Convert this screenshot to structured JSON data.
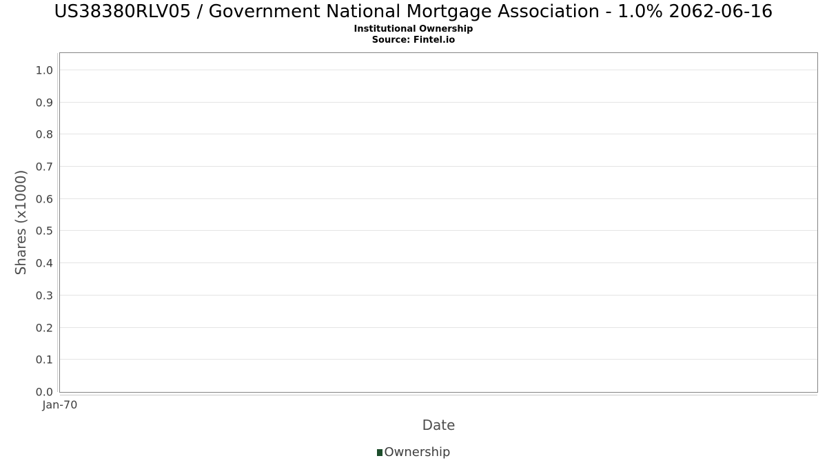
{
  "header": {
    "title": "US38380RLV05 / Government National Mortgage Association - 1.0% 2062-06-16",
    "subtitle": "Institutional Ownership",
    "source": "Source: Fintel.io"
  },
  "chart_data": {
    "type": "line",
    "title": "US38380RLV05 / Government National Mortgage Association - 1.0% 2062-06-16",
    "subtitle": "Institutional Ownership",
    "source": "Source: Fintel.io",
    "xlabel": "Date",
    "ylabel": "Shares (x1000)",
    "ylim": [
      0,
      1.053
    ],
    "yticks": [
      0.0,
      0.1,
      0.2,
      0.3,
      0.4,
      0.5,
      0.6,
      0.7,
      0.8,
      0.9,
      1.0
    ],
    "ytick_labels": [
      "0.0",
      "0.1",
      "0.2",
      "0.3",
      "0.4",
      "0.5",
      "0.6",
      "0.7",
      "0.8",
      "0.9",
      "1.0"
    ],
    "xtick_labels": [
      "Jan-70"
    ],
    "xtick_positions": [
      0
    ],
    "grid": "horizontal",
    "series": [
      {
        "name": "Ownership",
        "color": "#1d4e2c",
        "x": [],
        "values": []
      }
    ],
    "legend": {
      "position": "bottom",
      "entries": [
        {
          "label": "Ownership",
          "color": "#1d4e2c"
        }
      ]
    },
    "colors": {
      "plot_background": "#ffffff",
      "plot_border": "#848484",
      "gridline": "#e4e4e4",
      "axis_line": "#cccccc",
      "tick_label": "#3d3d3d",
      "axis_title": "#4d4d4d",
      "title_text": "#000000"
    }
  }
}
